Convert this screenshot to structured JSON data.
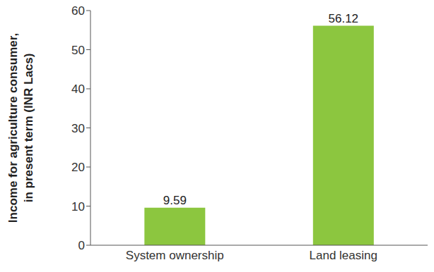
{
  "chart_data": {
    "type": "bar",
    "y_label": "Income for agriculture consumer,\nin present term (INR Lacs)",
    "categories": [
      "System ownership",
      "Land leasing"
    ],
    "values": [
      9.59,
      56.12
    ],
    "color": "#8cc63f",
    "ylim": [
      0,
      60
    ],
    "yticks": [
      0,
      10,
      20,
      30,
      40,
      50,
      60
    ],
    "grid": false,
    "data_labels": true
  }
}
